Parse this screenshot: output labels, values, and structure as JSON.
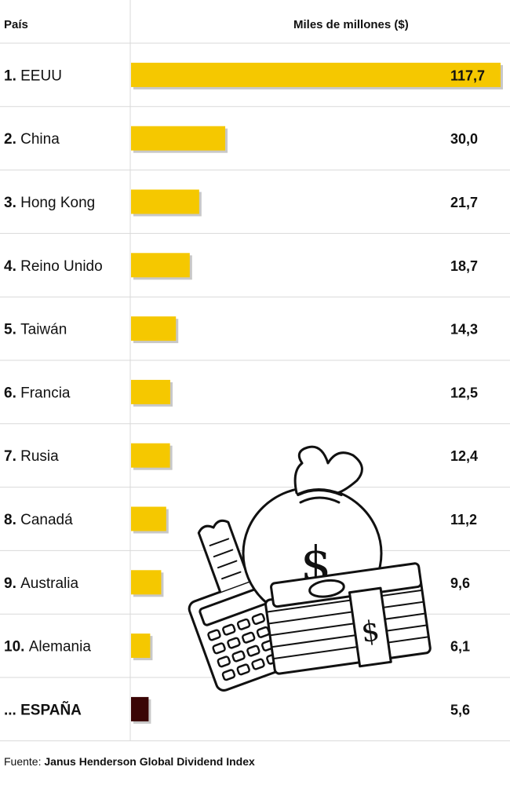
{
  "header": {
    "country_label": "País",
    "value_label": "Miles de millones ($)"
  },
  "chart_data": {
    "type": "bar",
    "orientation": "horizontal",
    "ranks": [
      "1.",
      "2.",
      "3.",
      "4.",
      "5.",
      "6.",
      "7.",
      "8.",
      "9.",
      "10.",
      "..."
    ],
    "categories": [
      "EEUU",
      "China",
      "Hong Kong",
      "Reino Unido",
      "Taiwán",
      "Francia",
      "Rusia",
      "Canadá",
      "Australia",
      "Alemania",
      "ESPAÑA"
    ],
    "values": [
      117.7,
      30.0,
      21.7,
      18.7,
      14.3,
      12.5,
      12.4,
      11.2,
      9.6,
      6.1,
      5.6
    ],
    "value_labels": [
      "117,7",
      "30,0",
      "21,7",
      "18,7",
      "14,3",
      "12,5",
      "12,4",
      "11,2",
      "9,6",
      "6,1",
      "5,6"
    ],
    "highlight_index": 10,
    "colors": {
      "bar": "#f5c800",
      "highlight": "#3a0505",
      "grid": "#d9d9d9"
    },
    "xlim": [
      0,
      117.7
    ],
    "title": "",
    "xlabel": "",
    "ylabel": "Miles de millones ($)"
  },
  "decoration": {
    "icon": "money-bag-illustration-icon"
  },
  "footer": {
    "source_prefix": "Fuente:",
    "source_name": "Janus Henderson Global Dividend Index"
  }
}
